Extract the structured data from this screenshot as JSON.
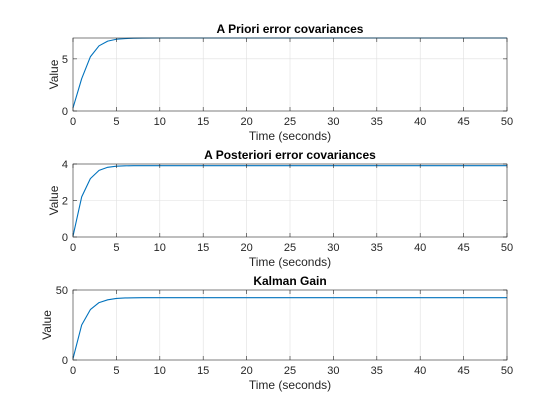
{
  "colors": {
    "series": "#0072bd"
  },
  "chart_data": [
    {
      "type": "line",
      "title": "A Priori error covariances",
      "xlabel": "Time (seconds)",
      "ylabel": "Value",
      "xlim": [
        0,
        50
      ],
      "ylim": [
        0,
        7
      ],
      "xticks": [
        0,
        5,
        10,
        15,
        20,
        25,
        30,
        35,
        40,
        45,
        50
      ],
      "xtick_labels": [
        "0",
        "5",
        "10",
        "15",
        "20",
        "25",
        "30",
        "35",
        "40",
        "45",
        "50"
      ],
      "yticks": [
        0,
        5
      ],
      "ytick_labels": [
        "0",
        "5"
      ],
      "grid": true,
      "series": [
        {
          "x": [
            0,
            1,
            2,
            3,
            4,
            5,
            6,
            7,
            8,
            10,
            15,
            20,
            25,
            30,
            35,
            40,
            45,
            50
          ],
          "y": [
            0.3,
            3.1,
            5.2,
            6.25,
            6.7,
            6.88,
            6.95,
            6.98,
            6.99,
            7.0,
            7.0,
            7.0,
            7.0,
            7.0,
            7.0,
            7.0,
            7.0,
            7.0
          ]
        }
      ]
    },
    {
      "type": "line",
      "title": "A Posteriori error covariances",
      "xlabel": "Time (seconds)",
      "ylabel": "Value",
      "xlim": [
        0,
        50
      ],
      "ylim": [
        0,
        4
      ],
      "xticks": [
        0,
        5,
        10,
        15,
        20,
        25,
        30,
        35,
        40,
        45,
        50
      ],
      "xtick_labels": [
        "0",
        "5",
        "10",
        "15",
        "20",
        "25",
        "30",
        "35",
        "40",
        "45",
        "50"
      ],
      "yticks": [
        0,
        2,
        4
      ],
      "ytick_labels": [
        "0",
        "2",
        "4"
      ],
      "grid": true,
      "series": [
        {
          "x": [
            0,
            1,
            2,
            3,
            4,
            5,
            6,
            7,
            8,
            10,
            15,
            20,
            25,
            30,
            35,
            40,
            45,
            50
          ],
          "y": [
            0.05,
            2.2,
            3.2,
            3.65,
            3.82,
            3.88,
            3.9,
            3.91,
            3.91,
            3.91,
            3.91,
            3.91,
            3.91,
            3.91,
            3.91,
            3.91,
            3.91,
            3.91
          ]
        }
      ]
    },
    {
      "type": "line",
      "title": "Kalman Gain",
      "xlabel": "Time (seconds)",
      "ylabel": "Value",
      "xlim": [
        0,
        50
      ],
      "ylim": [
        0,
        50
      ],
      "xticks": [
        0,
        5,
        10,
        15,
        20,
        25,
        30,
        35,
        40,
        45,
        50
      ],
      "xtick_labels": [
        "0",
        "5",
        "10",
        "15",
        "20",
        "25",
        "30",
        "35",
        "40",
        "45",
        "50"
      ],
      "yticks": [
        0,
        50
      ],
      "ytick_labels": [
        "0",
        "50"
      ],
      "grid": true,
      "series": [
        {
          "x": [
            0,
            1,
            2,
            3,
            4,
            5,
            6,
            7,
            8,
            10,
            15,
            20,
            25,
            30,
            35,
            40,
            45,
            50
          ],
          "y": [
            1,
            25,
            36,
            41,
            43,
            44,
            44.3,
            44.4,
            44.5,
            44.5,
            44.5,
            44.5,
            44.5,
            44.5,
            44.5,
            44.5,
            44.5,
            44.5
          ]
        }
      ]
    }
  ]
}
